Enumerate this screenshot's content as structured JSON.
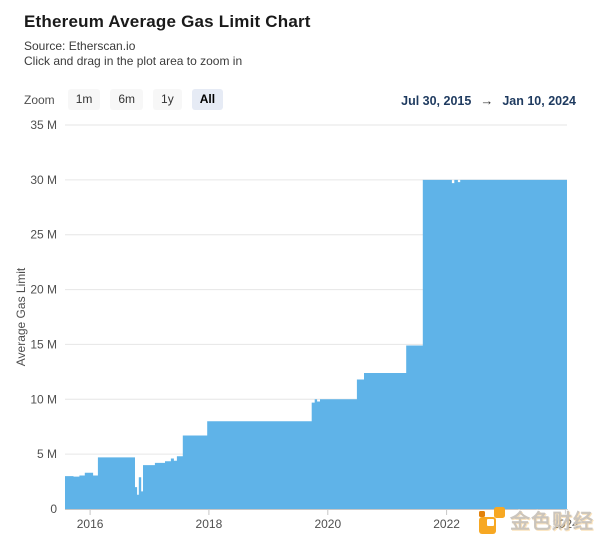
{
  "header": {
    "title": "Ethereum Average Gas Limit Chart",
    "source": "Source: Etherscan.io",
    "hint": "Click and drag in the plot area to zoom in"
  },
  "range_selector": {
    "zoom_label": "Zoom",
    "buttons": [
      {
        "label": "1m",
        "selected": false
      },
      {
        "label": "6m",
        "selected": false
      },
      {
        "label": "1y",
        "selected": false
      },
      {
        "label": "All",
        "selected": true
      }
    ],
    "from_date": "Jul 30, 2015",
    "arrow": "→",
    "to_date": "Jan 10, 2024"
  },
  "watermark": {
    "text": "金色财经"
  },
  "chart_data": {
    "type": "area",
    "title": "Ethereum Average Gas Limit Chart",
    "xlabel": "",
    "ylabel": "Average Gas Limit",
    "x_range": [
      2015.577,
      2024.027
    ],
    "ylim": [
      0,
      35
    ],
    "x_ticks": [
      2016,
      2018,
      2020,
      2022,
      2024
    ],
    "y_ticks": [
      {
        "value": 0,
        "label": "0"
      },
      {
        "value": 5,
        "label": "5 M"
      },
      {
        "value": 10,
        "label": "10 M"
      },
      {
        "value": 15,
        "label": "15 M"
      },
      {
        "value": 20,
        "label": "20 M"
      },
      {
        "value": 25,
        "label": "25 M"
      },
      {
        "value": 30,
        "label": "30 M"
      },
      {
        "value": 35,
        "label": "35 M"
      }
    ],
    "grid": true,
    "legend": "none",
    "area_color": "#5FB3E8",
    "axis_line_color": "#c6c6c6",
    "grid_color": "#e6e6e6",
    "label_color": "#4f4f4f",
    "units": "millions of gas",
    "series": [
      {
        "name": "Average Gas Limit",
        "step_points": [
          [
            2015.577,
            3.0
          ],
          [
            2015.72,
            2.95
          ],
          [
            2015.82,
            3.05
          ],
          [
            2015.91,
            3.3
          ],
          [
            2016.05,
            3.05
          ],
          [
            2016.13,
            4.7
          ],
          [
            2016.755,
            2.0
          ],
          [
            2016.79,
            1.3
          ],
          [
            2016.82,
            2.9
          ],
          [
            2016.86,
            1.6
          ],
          [
            2016.89,
            4.0
          ],
          [
            2017.09,
            4.2
          ],
          [
            2017.26,
            4.35
          ],
          [
            2017.36,
            4.6
          ],
          [
            2017.41,
            4.4
          ],
          [
            2017.46,
            4.8
          ],
          [
            2017.56,
            6.7
          ],
          [
            2017.97,
            8.0
          ],
          [
            2019.73,
            9.7
          ],
          [
            2019.78,
            10.0
          ],
          [
            2019.82,
            9.8
          ],
          [
            2019.87,
            10.0
          ],
          [
            2020.49,
            11.8
          ],
          [
            2020.61,
            12.4
          ],
          [
            2021.32,
            14.9
          ],
          [
            2021.6,
            30.0
          ],
          [
            2022.09,
            29.7
          ],
          [
            2022.13,
            30.0
          ],
          [
            2022.19,
            29.8
          ],
          [
            2022.23,
            30.0
          ]
        ]
      }
    ]
  }
}
